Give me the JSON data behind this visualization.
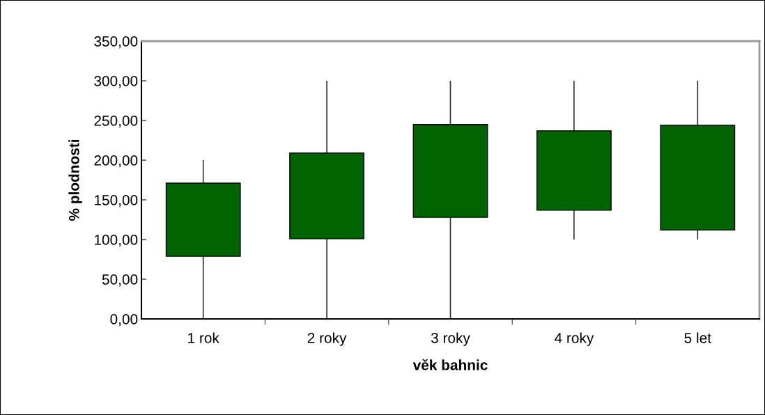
{
  "chart_data": {
    "type": "candlestick",
    "xlabel": "věk bahnic",
    "ylabel": "% plodnosti",
    "categories": [
      "1 rok",
      "2 roky",
      "3 roky",
      "4 roky",
      "5 let"
    ],
    "ohlc": [
      [
        79,
        200,
        0,
        171
      ],
      [
        101,
        300,
        0,
        209
      ],
      [
        128,
        300,
        0,
        245
      ],
      [
        137,
        300,
        100,
        237
      ],
      [
        112,
        300,
        100,
        244
      ]
    ],
    "color": "#006400",
    "ylim": [
      0,
      350
    ],
    "yticks": [
      {
        "value": 0,
        "label": "0,00"
      },
      {
        "value": 50,
        "label": "50,00"
      },
      {
        "value": 100,
        "label": "100,00"
      },
      {
        "value": 150,
        "label": "150,00"
      },
      {
        "value": 200,
        "label": "200,00"
      },
      {
        "value": 250,
        "label": "250,00"
      },
      {
        "value": 300,
        "label": "300,00"
      },
      {
        "value": 350,
        "label": "350,00"
      }
    ],
    "grid": false,
    "legend": false
  }
}
